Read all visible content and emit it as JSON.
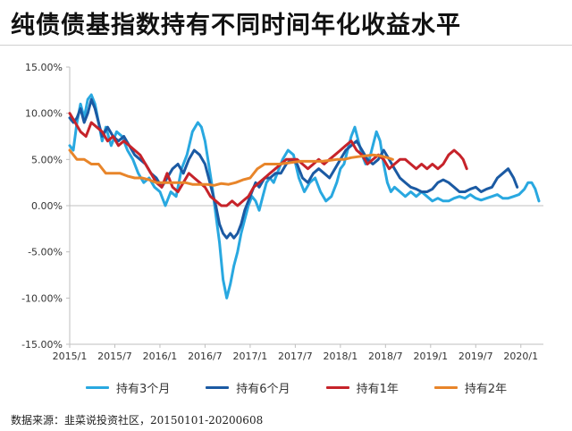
{
  "title": "纯债债基指数持有不同时间年化收益水平",
  "source": "数据来源：韭菜说投资社区，20150101-20200608",
  "colors": {
    "axis": "#bfbfbf",
    "grid": "#e6e6e6"
  },
  "chart_data": {
    "type": "line",
    "title": "纯债债基指数持有不同时间年化收益水平",
    "xlabel": "",
    "ylabel": "",
    "ylim": [
      -15,
      15
    ],
    "y_ticks": [
      15,
      10,
      5,
      0,
      -5,
      -10,
      -15
    ],
    "y_tick_labels": [
      "15.00%",
      "10.00%",
      "5.00%",
      "0.00%",
      "-5.00%",
      "-10.00%",
      "-15.00%"
    ],
    "x_ticks": [
      2015.0,
      2015.5,
      2016.0,
      2016.5,
      2017.0,
      2017.5,
      2018.0,
      2018.5,
      2019.0,
      2019.5,
      2020.0
    ],
    "x_tick_labels": [
      "2015/1",
      "2015/7",
      "2016/1",
      "2016/7",
      "2017/1",
      "2017/7",
      "2018/1",
      "2018/7",
      "2019/1",
      "2019/7",
      "2020/1"
    ],
    "xlim": [
      2015.0,
      2020.25
    ],
    "grid": false,
    "legend_position": "bottom",
    "series": [
      {
        "name": "持有3个月",
        "color": "#29a8e0",
        "x": [
          2015.0,
          2015.04,
          2015.08,
          2015.12,
          2015.16,
          2015.2,
          2015.24,
          2015.28,
          2015.32,
          2015.36,
          2015.4,
          2015.46,
          2015.52,
          2015.58,
          2015.64,
          2015.7,
          2015.76,
          2015.82,
          2015.88,
          2015.94,
          2016.0,
          2016.06,
          2016.12,
          2016.18,
          2016.24,
          2016.3,
          2016.36,
          2016.42,
          2016.46,
          2016.5,
          2016.54,
          2016.58,
          2016.62,
          2016.66,
          2016.7,
          2016.74,
          2016.78,
          2016.82,
          2016.86,
          2016.9,
          2016.94,
          2016.98,
          2017.02,
          2017.06,
          2017.1,
          2017.14,
          2017.18,
          2017.22,
          2017.26,
          2017.3,
          2017.36,
          2017.42,
          2017.48,
          2017.54,
          2017.6,
          2017.66,
          2017.72,
          2017.78,
          2017.84,
          2017.9,
          2017.96,
          2018.0,
          2018.04,
          2018.08,
          2018.12,
          2018.16,
          2018.2,
          2018.24,
          2018.28,
          2018.32,
          2018.36,
          2018.4,
          2018.44,
          2018.48,
          2018.52,
          2018.56,
          2018.6,
          2018.66,
          2018.72,
          2018.78,
          2018.84,
          2018.9,
          2018.96,
          2019.02,
          2019.08,
          2019.14,
          2019.2,
          2019.26,
          2019.32,
          2019.38,
          2019.44,
          2019.5,
          2019.56,
          2019.62,
          2019.68,
          2019.74,
          2019.8,
          2019.86,
          2019.92,
          2019.98,
          2020.04,
          2020.08,
          2020.12,
          2020.16,
          2020.2
        ],
        "values": [
          6.5,
          6.0,
          9.0,
          11.0,
          9.5,
          11.5,
          12.0,
          11.0,
          9.0,
          7.0,
          8.5,
          6.5,
          8.0,
          7.5,
          6.0,
          5.0,
          3.5,
          2.5,
          3.0,
          2.0,
          1.5,
          0.0,
          1.5,
          1.0,
          4.0,
          5.5,
          8.0,
          9.0,
          8.5,
          7.0,
          4.5,
          2.0,
          -1.0,
          -4.0,
          -8.0,
          -10.0,
          -8.5,
          -6.5,
          -5.0,
          -3.0,
          -1.5,
          0.0,
          1.0,
          0.5,
          -0.5,
          1.0,
          2.5,
          3.0,
          2.5,
          3.5,
          5.0,
          6.0,
          5.5,
          3.0,
          1.5,
          2.5,
          3.0,
          1.5,
          0.5,
          1.0,
          2.5,
          4.0,
          4.5,
          6.0,
          7.5,
          8.5,
          7.0,
          5.5,
          4.5,
          5.0,
          6.5,
          8.0,
          7.0,
          4.5,
          2.5,
          1.5,
          2.0,
          1.5,
          1.0,
          1.5,
          1.0,
          1.5,
          1.0,
          0.5,
          0.8,
          0.5,
          0.5,
          0.8,
          1.0,
          0.8,
          1.2,
          0.8,
          0.6,
          0.8,
          1.0,
          1.2,
          0.8,
          0.8,
          1.0,
          1.2,
          1.8,
          2.5,
          2.5,
          1.8,
          0.5
        ]
      },
      {
        "name": "持有6个月",
        "color": "#1b5aa3",
        "x": [
          2015.0,
          2015.04,
          2015.08,
          2015.12,
          2015.16,
          2015.2,
          2015.24,
          2015.28,
          2015.32,
          2015.36,
          2015.42,
          2015.48,
          2015.54,
          2015.6,
          2015.66,
          2015.72,
          2015.78,
          2015.84,
          2015.9,
          2015.96,
          2016.02,
          2016.08,
          2016.14,
          2016.2,
          2016.26,
          2016.32,
          2016.38,
          2016.44,
          2016.5,
          2016.54,
          2016.58,
          2016.62,
          2016.66,
          2016.7,
          2016.74,
          2016.78,
          2016.82,
          2016.86,
          2016.9,
          2016.94,
          2016.98,
          2017.02,
          2017.06,
          2017.1,
          2017.16,
          2017.22,
          2017.28,
          2017.34,
          2017.4,
          2017.46,
          2017.52,
          2017.58,
          2017.64,
          2017.7,
          2017.76,
          2017.82,
          2017.88,
          2017.94,
          2018.0,
          2018.06,
          2018.12,
          2018.18,
          2018.24,
          2018.3,
          2018.36,
          2018.42,
          2018.48,
          2018.54,
          2018.6,
          2018.66,
          2018.72,
          2018.78,
          2018.84,
          2018.9,
          2018.96,
          2019.02,
          2019.08,
          2019.14,
          2019.2,
          2019.26,
          2019.32,
          2019.38,
          2019.44,
          2019.5,
          2019.56,
          2019.62,
          2019.68,
          2019.74,
          2019.8,
          2019.86,
          2019.92,
          2019.96
        ],
        "values": [
          9.5,
          9.0,
          9.5,
          10.5,
          9.0,
          10.0,
          11.5,
          10.5,
          9.0,
          7.5,
          8.5,
          7.5,
          7.0,
          7.5,
          6.5,
          5.5,
          5.0,
          4.5,
          3.5,
          3.0,
          2.0,
          3.0,
          4.0,
          4.5,
          3.5,
          5.0,
          6.0,
          5.5,
          4.5,
          3.0,
          1.5,
          0.0,
          -2.0,
          -3.0,
          -3.5,
          -3.0,
          -3.5,
          -3.0,
          -2.0,
          -0.5,
          0.5,
          1.5,
          2.5,
          2.0,
          3.0,
          3.0,
          3.5,
          3.5,
          4.5,
          5.0,
          4.5,
          3.0,
          2.5,
          3.5,
          4.0,
          3.5,
          3.0,
          4.0,
          5.0,
          6.0,
          6.5,
          7.0,
          6.0,
          5.0,
          4.5,
          5.0,
          6.0,
          5.0,
          4.0,
          3.0,
          2.5,
          2.0,
          1.8,
          1.5,
          1.5,
          1.8,
          2.5,
          2.8,
          2.5,
          2.0,
          1.5,
          1.5,
          1.8,
          2.0,
          1.5,
          1.8,
          2.0,
          3.0,
          3.5,
          4.0,
          3.0,
          2.0
        ]
      },
      {
        "name": "持有1年",
        "color": "#c6232a",
        "x": [
          2015.0,
          2015.06,
          2015.12,
          2015.18,
          2015.24,
          2015.3,
          2015.36,
          2015.42,
          2015.48,
          2015.54,
          2015.6,
          2015.66,
          2015.72,
          2015.78,
          2015.84,
          2015.9,
          2015.96,
          2016.02,
          2016.08,
          2016.14,
          2016.2,
          2016.26,
          2016.32,
          2016.38,
          2016.44,
          2016.5,
          2016.56,
          2016.62,
          2016.68,
          2016.74,
          2016.8,
          2016.86,
          2016.92,
          2016.98,
          2017.04,
          2017.1,
          2017.16,
          2017.22,
          2017.28,
          2017.34,
          2017.4,
          2017.46,
          2017.52,
          2017.58,
          2017.64,
          2017.7,
          2017.76,
          2017.82,
          2017.88,
          2017.94,
          2018.0,
          2018.06,
          2018.12,
          2018.18,
          2018.24,
          2018.3,
          2018.36,
          2018.42,
          2018.48,
          2018.54,
          2018.6,
          2018.66,
          2018.72,
          2018.78,
          2018.84,
          2018.9,
          2018.96,
          2019.02,
          2019.08,
          2019.14,
          2019.2,
          2019.26,
          2019.32,
          2019.36,
          2019.4
        ],
        "values": [
          10.0,
          9.0,
          8.0,
          7.5,
          9.0,
          8.5,
          8.0,
          7.0,
          7.5,
          6.5,
          7.0,
          6.5,
          6.0,
          5.5,
          4.5,
          3.5,
          2.5,
          2.0,
          3.5,
          2.0,
          1.5,
          2.5,
          3.5,
          3.0,
          2.5,
          2.0,
          1.0,
          0.5,
          0.0,
          0.0,
          0.5,
          0.0,
          0.5,
          1.0,
          2.0,
          2.5,
          3.0,
          3.5,
          4.0,
          4.5,
          5.0,
          5.0,
          5.0,
          4.5,
          4.0,
          4.5,
          5.0,
          4.5,
          5.0,
          5.5,
          6.0,
          6.5,
          7.0,
          6.0,
          5.5,
          4.5,
          5.0,
          5.5,
          5.0,
          4.0,
          4.5,
          5.0,
          5.0,
          4.5,
          4.0,
          4.5,
          4.0,
          4.5,
          4.0,
          4.5,
          5.5,
          6.0,
          5.5,
          5.0,
          4.0
        ]
      },
      {
        "name": "持有2年",
        "color": "#e8852a",
        "x": [
          2015.0,
          2015.08,
          2015.16,
          2015.24,
          2015.32,
          2015.4,
          2015.48,
          2015.56,
          2015.64,
          2015.72,
          2015.8,
          2015.88,
          2015.96,
          2016.04,
          2016.12,
          2016.2,
          2016.28,
          2016.36,
          2016.44,
          2016.52,
          2016.6,
          2016.68,
          2016.76,
          2016.84,
          2016.92,
          2017.0,
          2017.08,
          2017.16,
          2017.24,
          2017.32,
          2017.4,
          2017.48,
          2017.56,
          2017.64,
          2017.72,
          2017.8,
          2017.88,
          2017.96,
          2018.04,
          2018.12,
          2018.2,
          2018.28,
          2018.36,
          2018.44,
          2018.52,
          2018.58
        ],
        "values": [
          6.0,
          5.0,
          5.0,
          4.5,
          4.5,
          3.5,
          3.5,
          3.5,
          3.2,
          3.0,
          3.0,
          2.8,
          2.5,
          2.5,
          2.5,
          2.5,
          2.5,
          2.3,
          2.3,
          2.3,
          2.2,
          2.4,
          2.3,
          2.5,
          2.8,
          3.0,
          4.0,
          4.5,
          4.5,
          4.5,
          4.6,
          4.7,
          4.8,
          4.8,
          4.8,
          4.8,
          4.9,
          5.0,
          5.0,
          5.2,
          5.3,
          5.4,
          5.5,
          5.4,
          5.2,
          5.0
        ]
      }
    ]
  }
}
